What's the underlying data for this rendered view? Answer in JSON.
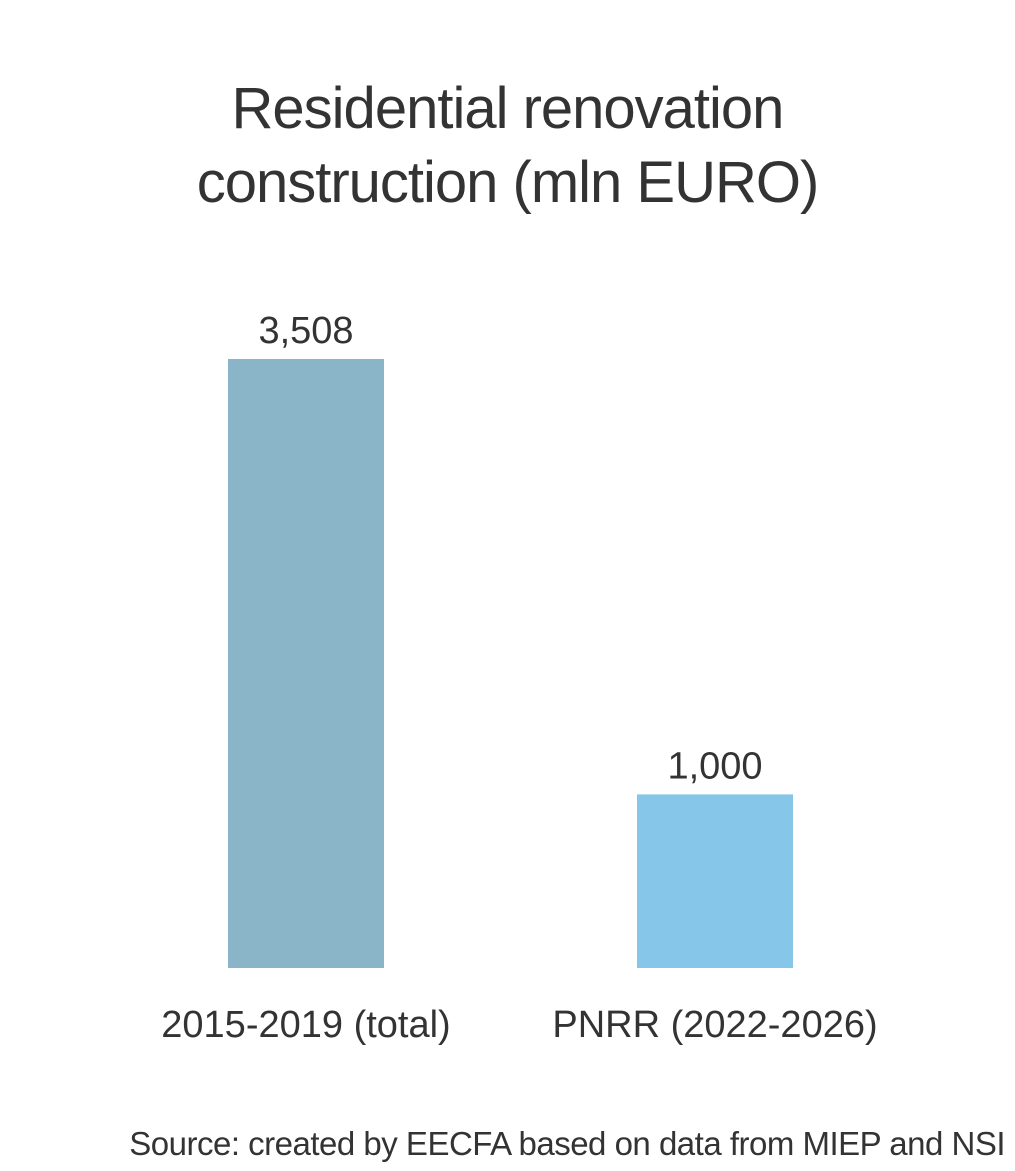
{
  "chart_data": {
    "type": "bar",
    "title": [
      "Residential renovation",
      "construction (mln EURO)"
    ],
    "categories": [
      "2015-2019 (total)",
      "PNRR (2022-2026)"
    ],
    "values": [
      3508,
      1000
    ],
    "data_labels": [
      "3,508",
      "1,000"
    ],
    "bar_colors": [
      "#8ab5c9",
      "#85c6e9"
    ],
    "xlabel": "",
    "ylabel": "",
    "ylim": [
      0,
      3508
    ],
    "grid": false,
    "legend": "none"
  },
  "source": "Source: created by EECFA based on data from MIEP and NSI"
}
